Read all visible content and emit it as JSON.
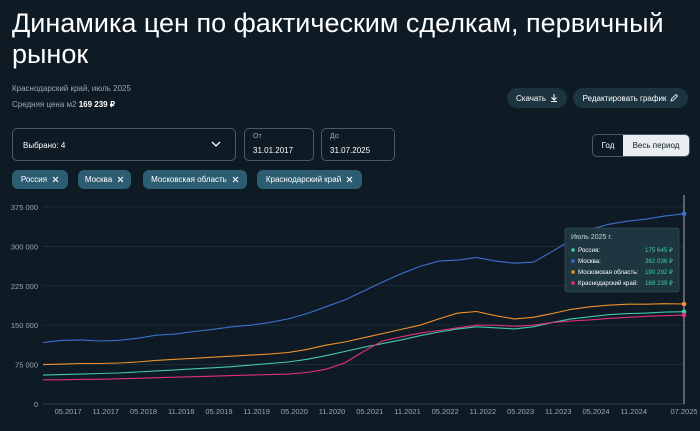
{
  "header": {
    "title": "Динамика цен по фактическим сделкам, первичный рынок",
    "region": "Краснодарский край, июль 2025",
    "avg_label": "Средняя цена м2",
    "avg_value": "169 239 ₽"
  },
  "actions": {
    "download": "Скачать",
    "edit": "Редактировать график"
  },
  "filters": {
    "selected": "Выбрано: 4",
    "from_label": "От",
    "from": "31.01.2017",
    "to_label": "До",
    "to": "31.07.2025",
    "period_year": "Год",
    "period_all": "Весь период"
  },
  "chips": [
    "Россия",
    "Москва",
    "Московская область",
    "Краснодарский край"
  ],
  "chart_data": {
    "type": "line",
    "x": [
      "01.2017",
      "04.2017",
      "07.2017",
      "10.2017",
      "01.2018",
      "04.2018",
      "07.2018",
      "10.2018",
      "01.2019",
      "04.2019",
      "07.2019",
      "10.2019",
      "01.2020",
      "04.2020",
      "07.2020",
      "10.2020",
      "01.2021",
      "04.2021",
      "07.2021",
      "10.2021",
      "01.2022",
      "04.2022",
      "07.2022",
      "10.2022",
      "01.2023",
      "04.2023",
      "07.2023",
      "10.2023",
      "01.2024",
      "04.2024",
      "07.2024",
      "10.2024",
      "01.2025",
      "04.2025",
      "07.2025"
    ],
    "xticks": [
      "05.2017",
      "11.2017",
      "05.2018",
      "11.2018",
      "05.2019",
      "11.2019",
      "05.2020",
      "11.2020",
      "05.2021",
      "11.2021",
      "05.2022",
      "11.2022",
      "05.2023",
      "11.2023",
      "05.2024",
      "11.2024",
      "07.2025"
    ],
    "ylim": [
      0,
      375000
    ],
    "yticks": [
      0,
      {
        "value": 75000,
        "label": "75 000"
      },
      {
        "value": 150000,
        "label": "150 000"
      },
      {
        "value": 225000,
        "label": "225 000"
      },
      {
        "value": 300000,
        "label": "300 000"
      },
      {
        "value": 375000,
        "label": "375 000"
      }
    ],
    "grid": true,
    "series": [
      {
        "name": "Россия",
        "color": "#45c9a3",
        "values": [
          55000,
          56000,
          57000,
          58000,
          59000,
          61000,
          63000,
          65000,
          67000,
          69000,
          71000,
          74000,
          77000,
          80000,
          85000,
          92000,
          100000,
          108000,
          115000,
          122000,
          130000,
          137000,
          143000,
          147000,
          145000,
          143000,
          147000,
          155000,
          162000,
          166000,
          170000,
          172000,
          173000,
          175000,
          175645
        ]
      },
      {
        "name": "Москва",
        "color": "#3c6fd0",
        "values": [
          117000,
          121000,
          122000,
          120000,
          121000,
          125000,
          131000,
          133000,
          138000,
          142000,
          147000,
          150000,
          155000,
          162000,
          172000,
          185000,
          198000,
          215000,
          232000,
          248000,
          262000,
          272000,
          274000,
          279000,
          272000,
          268000,
          270000,
          290000,
          312000,
          332000,
          342000,
          348000,
          352000,
          358000,
          362036
        ]
      },
      {
        "name": "Московская область",
        "color": "#f0922b",
        "values": [
          75000,
          76000,
          77000,
          77000,
          78000,
          80000,
          83000,
          85000,
          87000,
          89000,
          91000,
          93000,
          95000,
          98000,
          104000,
          112000,
          118000,
          126000,
          134000,
          142000,
          150000,
          162000,
          173000,
          176000,
          168000,
          162000,
          165000,
          172000,
          180000,
          185000,
          188000,
          190000,
          190000,
          191000,
          190292
        ]
      },
      {
        "name": "Краснодарский край",
        "color": "#e0307a",
        "values": [
          46000,
          46000,
          47000,
          47000,
          48000,
          49000,
          50000,
          51000,
          52000,
          53000,
          54000,
          55000,
          56000,
          57000,
          60000,
          66000,
          78000,
          100000,
          120000,
          128000,
          135000,
          140000,
          145000,
          150000,
          150000,
          148000,
          150000,
          155000,
          158000,
          160000,
          163000,
          165000,
          167000,
          168000,
          169239
        ]
      }
    ],
    "tooltip": {
      "title": "Июль 2025 г.",
      "rows": [
        {
          "name": "Россия:",
          "label": "175 645 ₽"
        },
        {
          "name": "Москва:",
          "label": "362 036 ₽"
        },
        {
          "name": "Московская область:",
          "label": "190 292 ₽"
        },
        {
          "name": "Краснодарский край:",
          "label": "169 239 ₽"
        }
      ]
    }
  }
}
